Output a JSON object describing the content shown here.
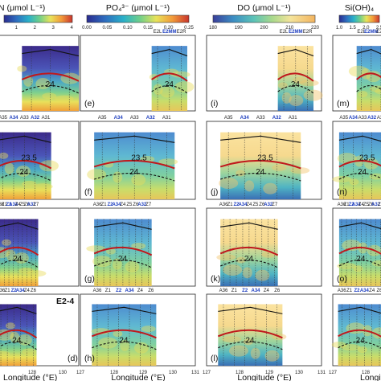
{
  "headers": [
    {
      "text": "N (μmol L⁻¹)",
      "ticks": [
        "1",
        "2",
        "3",
        "4"
      ]
    },
    {
      "text": "PO₄³⁻ (μmol L⁻¹)",
      "ticks": [
        "0.00",
        "0.05",
        "0.10",
        "0.15",
        "0.20",
        "0.25"
      ]
    },
    {
      "text": "DO (μmol L⁻¹)",
      "ticks": [
        "180",
        "190",
        "200",
        "210",
        "220"
      ]
    },
    {
      "text": "Si(OH)₄",
      "ticks": [
        "1.0",
        "1.5",
        "2.0",
        "2.5"
      ]
    }
  ],
  "row_section_labels": [
    [
      "E2L",
      "E2MM",
      "E2R"
    ],
    [
      "A35",
      "A34",
      "A33",
      "A32",
      "A31"
    ],
    [
      "A36",
      "Z1",
      "Z2",
      "A34",
      "Z4",
      "Z5",
      "Z6",
      "A32",
      "Z7"
    ],
    [
      "A36",
      "Z1",
      "Z2",
      "A34",
      "Z4",
      "Z6"
    ]
  ],
  "highlight_labels": [
    "E2MM",
    "A32",
    "A34",
    "Z2"
  ],
  "panel_letters": [
    [
      "",
      "(e)",
      "(i)",
      "(m)"
    ],
    [
      "",
      "(f)",
      "(j)",
      "(n)"
    ],
    [
      "",
      "(g)",
      "(k)",
      "(o)"
    ],
    [
      "(d)",
      "(h)",
      "(l)",
      ""
    ]
  ],
  "isopycnals": [
    "23.5",
    "24"
  ],
  "section_tag": "E2-4",
  "x_ticks": [
    "128",
    "129",
    "130",
    "131",
    "127"
  ],
  "x_axis_label": "Longitude (°E)",
  "colors": {
    "isopycnal_main": "#c0181c",
    "isopycnal_dash": "#111111",
    "mld_line": "#111111",
    "highlight": "#1f3fbf"
  }
}
